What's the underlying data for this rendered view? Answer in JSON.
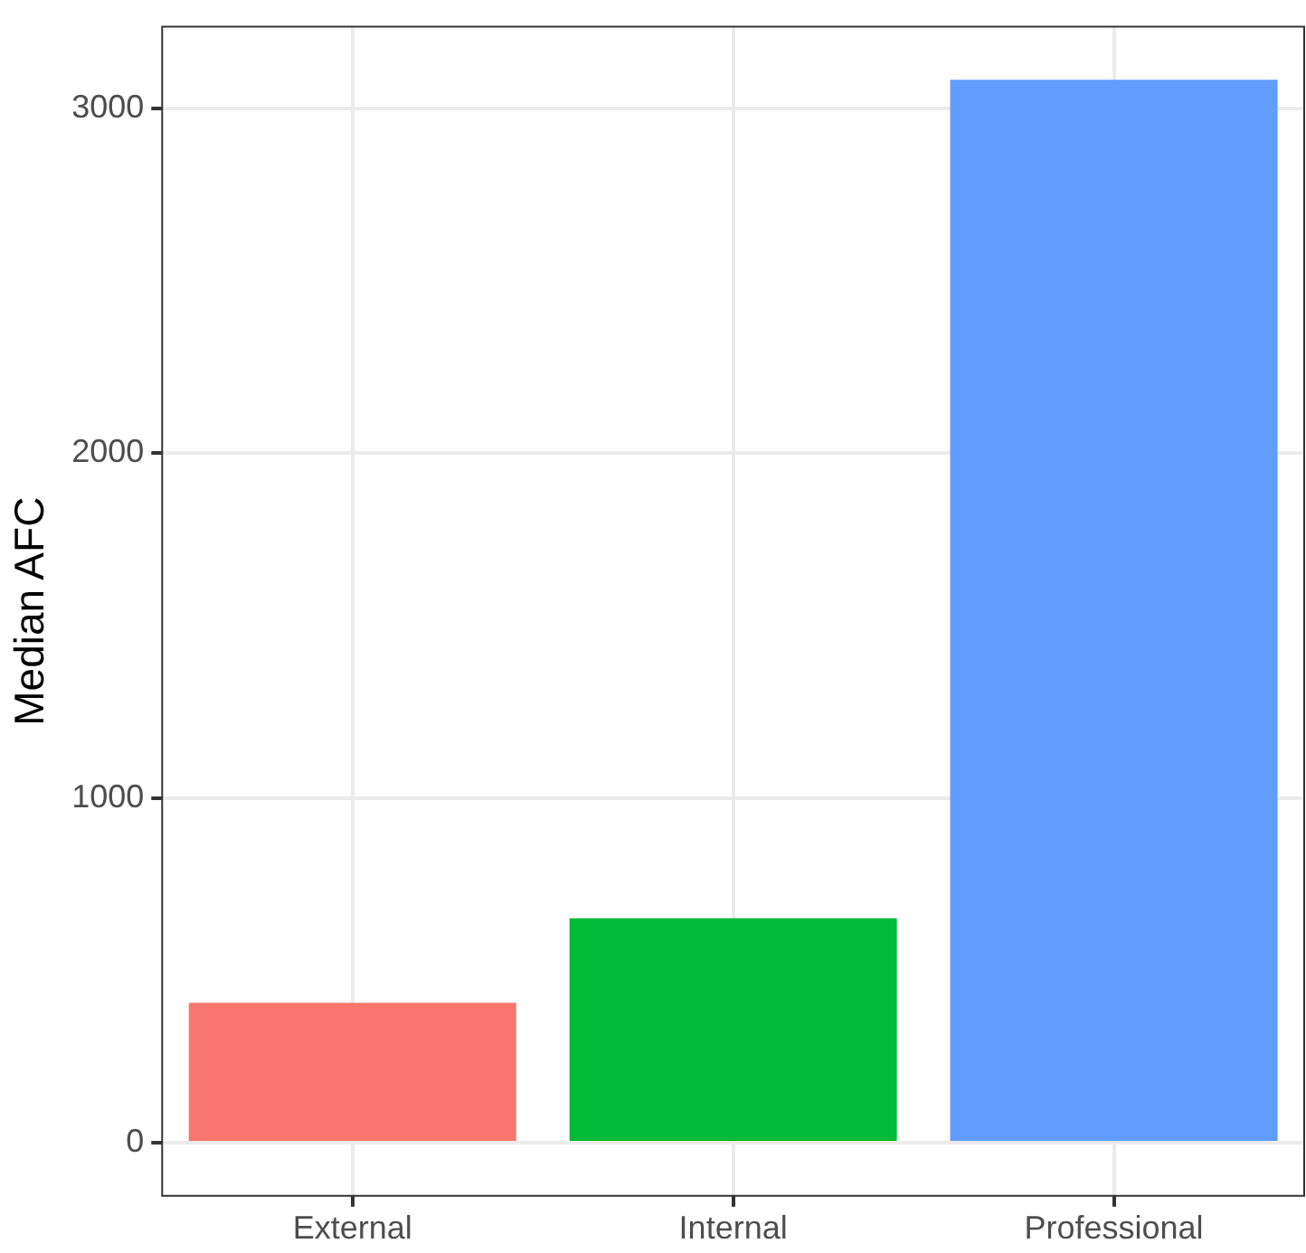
{
  "chart_data": {
    "type": "bar",
    "ylabel": "Median AFC",
    "categories": [
      "External",
      "Internal",
      "Professional"
    ],
    "values": [
      406,
      651,
      3083
    ],
    "colors": [
      "#f8766d",
      "#00ba38",
      "#619cff"
    ],
    "ylim": [
      -154,
      3237
    ],
    "yticks": [
      0,
      1000,
      2000,
      3000
    ],
    "grid": true,
    "legend": false
  }
}
